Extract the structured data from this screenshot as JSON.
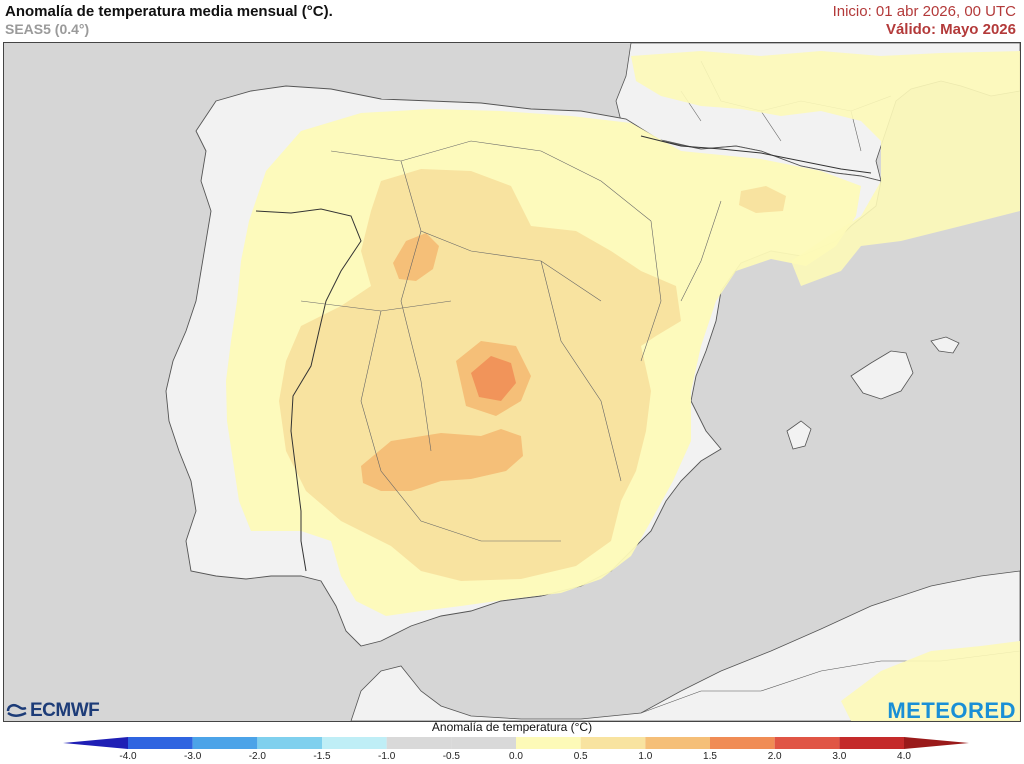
{
  "header": {
    "title": "Anomalía de temperatura media mensual (°C).",
    "model": "SEAS5 (0.4°)",
    "init": "Inicio: 01 abr 2026, 00 UTC",
    "valid": "Válido: Mayo 2026"
  },
  "logos": {
    "left": "ECMWF",
    "right": "METEORED"
  },
  "legend": {
    "title": "Anomalía de temperatura (°C)",
    "ticks": [
      "-4.0",
      "-3.0",
      "-2.0",
      "-1.5",
      "-1.0",
      "-0.5",
      "0.0",
      "0.5",
      "1.0",
      "1.5",
      "2.0",
      "3.0",
      "4.0"
    ],
    "colors": [
      "#1f1fb5",
      "#2f64e0",
      "#4ba3e8",
      "#7fd0ee",
      "#bfeef6",
      "#d9d9d9",
      "#d9d9d9",
      "#fdfab8",
      "#f8e3a0",
      "#f5bf78",
      "#f08c55",
      "#e05545",
      "#c42a2a",
      "#9a1a1a"
    ]
  },
  "map": {
    "sea_color": "#d6d6d6",
    "land_color": "#f2f2f2",
    "anomaly_colors": {
      "0.5-1.0": "#fdfab8",
      "1.0-1.5": "#f8e3a0",
      "1.5-2.0": "#f5bf78",
      "2.0-3.0": "#f08c55"
    },
    "region": "Península Ibérica"
  }
}
